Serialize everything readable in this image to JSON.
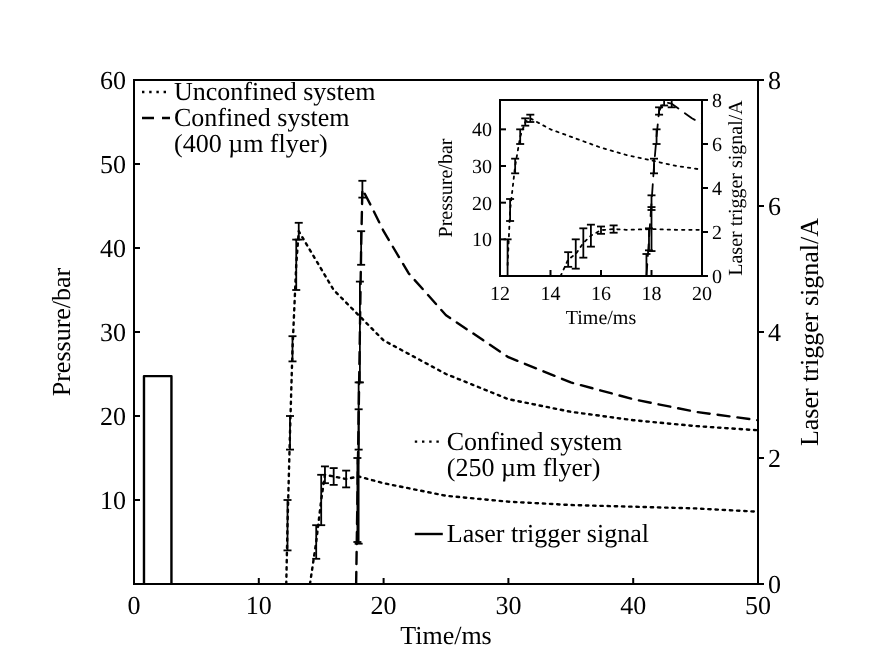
{
  "chart_data": [
    {
      "type": "line",
      "xlabel": "Time/ms",
      "ylabel": "Pressure/bar",
      "y2label": "Laser trigger signal/A",
      "xlim": [
        0,
        50
      ],
      "xticks": [
        0,
        10,
        20,
        30,
        40,
        50
      ],
      "ylim": [
        0,
        60
      ],
      "yticks": [
        10,
        20,
        30,
        40,
        50,
        60
      ],
      "y2lim": [
        0,
        8
      ],
      "y2ticks": [
        0,
        2,
        4,
        6,
        8
      ],
      "legend": "top left",
      "grid": false,
      "marker": "none",
      "series": [
        {
          "name": "Unconfined system",
          "color": "#000000",
          "line_style": "dotted",
          "x": [
            14.1,
            14.6,
            15,
            15.3,
            16,
            17,
            18,
            20,
            25,
            30,
            35,
            40,
            45,
            50
          ],
          "values": [
            0,
            5,
            10,
            13,
            12.8,
            12.5,
            12.8,
            12,
            10.5,
            9.8,
            9.4,
            9.2,
            9,
            8.6
          ],
          "errors": [
            null,
            2,
            3,
            1,
            1,
            1,
            8,
            null,
            null,
            null,
            null,
            null,
            null,
            null
          ]
        },
        {
          "name": "Confined system\n(400 µm flyer)",
          "color": "#000000",
          "line_style": "dashed",
          "x": [
            17.8,
            17.9,
            18,
            18.1,
            18.2,
            18.3,
            19,
            20,
            22,
            25,
            30,
            35,
            40,
            45,
            50
          ],
          "values": [
            0,
            10,
            20,
            30,
            40,
            47,
            45,
            42,
            37,
            32,
            27,
            24,
            22,
            20.5,
            19.5
          ],
          "errors": [
            null,
            5,
            4,
            6,
            2,
            1,
            null,
            null,
            null,
            null,
            null,
            null,
            null,
            null,
            null
          ]
        },
        {
          "name": "Confined system\n(250 µm flyer)",
          "color": "#000000",
          "line_style": "dotted",
          "x": [
            12.2,
            12.3,
            12.5,
            12.7,
            13,
            13.2,
            14,
            16,
            18,
            20,
            25,
            30,
            35,
            40,
            45,
            50
          ],
          "values": [
            0,
            7,
            18,
            28,
            38,
            42,
            40,
            35,
            32,
            29,
            25,
            22,
            20.5,
            19.5,
            18.8,
            18.3
          ],
          "errors": [
            null,
            3,
            2,
            1.5,
            3,
            1,
            null,
            null,
            null,
            null,
            null,
            null,
            null,
            null,
            null,
            null
          ]
        },
        {
          "name": "Laser trigger signal",
          "color": "#000000",
          "line_style": "solid",
          "axis": "y2",
          "x": [
            0.8,
            0.8,
            3,
            3
          ],
          "values": [
            0,
            3.3,
            3.3,
            0
          ]
        }
      ]
    },
    {
      "type": "line",
      "xlabel": "Time/ms",
      "ylabel": "Pressure/bar",
      "y2label": "Laser trigger signal/A",
      "xlim": [
        12,
        20
      ],
      "xticks": [
        12,
        14,
        16,
        18,
        20
      ],
      "ylim": [
        0,
        48
      ],
      "yticks": [
        10,
        20,
        30,
        40
      ],
      "y2lim": [
        0,
        8
      ],
      "y2ticks": [
        0,
        2,
        4,
        6,
        8
      ],
      "grid": false,
      "marker": "none",
      "series": [
        {
          "color": "#000000",
          "line_style": "dotted",
          "x": [
            12.3,
            12.4,
            12.6,
            12.8,
            13,
            13.2,
            14,
            15,
            16,
            17,
            18,
            19,
            20
          ],
          "values": [
            3,
            18,
            30,
            38,
            42,
            43,
            40,
            37.5,
            35,
            33,
            31.5,
            30,
            29
          ],
          "errors": [
            7,
            3,
            2,
            2,
            1,
            1,
            null,
            null,
            null,
            null,
            null,
            null,
            null
          ]
        },
        {
          "color": "#000000",
          "line_style": "dotted",
          "x": [
            14.4,
            14.7,
            15,
            15.3,
            15.6,
            16,
            16.5,
            17,
            18,
            19,
            20
          ],
          "values": [
            0,
            4.5,
            6,
            9,
            11,
            12.5,
            12.8,
            12.6,
            12.8,
            12.6,
            12.6
          ],
          "errors": [
            null,
            2,
            4,
            4,
            3,
            1,
            1,
            null,
            6,
            null,
            null
          ]
        },
        {
          "color": "#000000",
          "line_style": "dashed",
          "x": [
            17.8,
            17.9,
            18,
            18.1,
            18.2,
            18.3,
            18.5,
            18.8,
            19.2,
            19.6,
            20
          ],
          "values": [
            0,
            10,
            20,
            30,
            38,
            45,
            47.5,
            47,
            45,
            43,
            41.5
          ],
          "errors": [
            6,
            3,
            2,
            2,
            2,
            1,
            1,
            1,
            null,
            null,
            null
          ]
        }
      ]
    }
  ]
}
